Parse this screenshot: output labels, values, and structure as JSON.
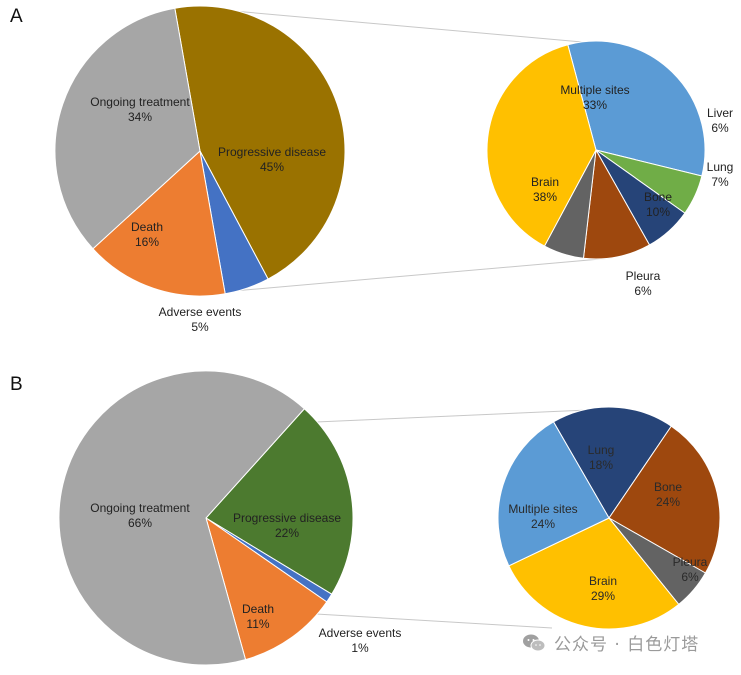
{
  "chart_data": [
    {
      "panel": "A",
      "type": "pie",
      "labels": [
        "Ongoing treatment",
        "Progressive disease",
        "Adverse events",
        "Death"
      ],
      "values": [
        34,
        45,
        5,
        16
      ],
      "value_labels": [
        "34%",
        "45%",
        "5%",
        "16%"
      ],
      "colors": [
        "#a6a6a6",
        "#9a7200",
        "#4472c4",
        "#ed7d31"
      ],
      "breakdown_of": "Progressive disease",
      "breakdown": {
        "type": "pie",
        "labels": [
          "Multiple sites",
          "Liver",
          "Lung",
          "Bone",
          "Pleura",
          "Brain"
        ],
        "values": [
          33,
          6,
          7,
          10,
          6,
          38
        ],
        "value_labels": [
          "33%",
          "6%",
          "7%",
          "10%",
          "6%",
          "38%"
        ],
        "colors": [
          "#5b9bd5",
          "#70ad47",
          "#264478",
          "#9e480e",
          "#636363",
          "#ffc000"
        ]
      }
    },
    {
      "panel": "B",
      "type": "pie",
      "labels": [
        "Ongoing treatment",
        "Progressive disease",
        "Adverse events",
        "Death"
      ],
      "values": [
        66,
        22,
        1,
        11
      ],
      "value_labels": [
        "66%",
        "22%",
        "1%",
        "11%"
      ],
      "colors": [
        "#a6a6a6",
        "#4c7a2f",
        "#4472c4",
        "#ed7d31"
      ],
      "breakdown_of": "Progressive disease",
      "breakdown": {
        "type": "pie",
        "labels": [
          "Lung",
          "Bone",
          "Pleura",
          "Brain",
          "Multiple sites"
        ],
        "values": [
          18,
          24,
          6,
          29,
          24
        ],
        "value_labels": [
          "18%",
          "24%",
          "6%",
          "29%",
          "24%"
        ],
        "colors": [
          "#264478",
          "#9e480e",
          "#636363",
          "#ffc000",
          "#5b9bd5"
        ]
      }
    }
  ],
  "watermark": {
    "text": "公众号 · 白色灯塔",
    "icon": "wechat-icon"
  }
}
